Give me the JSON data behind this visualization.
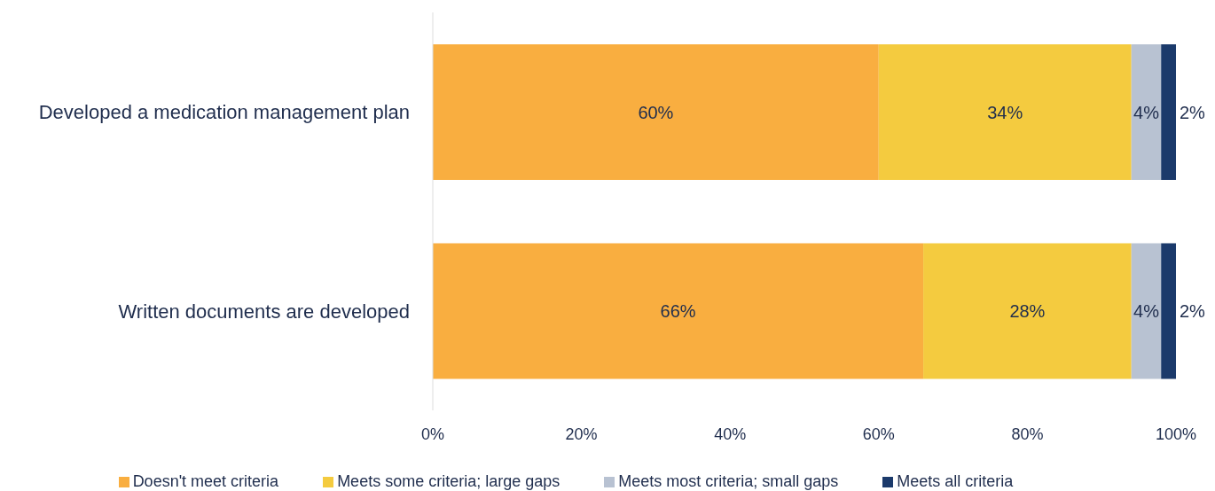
{
  "chart_data": {
    "type": "bar",
    "orientation": "horizontal",
    "stacked": true,
    "categories": [
      "Developed a medication management plan",
      "Written documents are developed"
    ],
    "series": [
      {
        "name": "Doesn't meet criteria",
        "color": "#f9ae40",
        "values": [
          60,
          66
        ],
        "value_labels": [
          "60%",
          "66%"
        ]
      },
      {
        "name": "Meets some criteria; large gaps",
        "color": "#f4cb3f",
        "values": [
          34,
          28
        ],
        "value_labels": [
          "34%",
          "28%"
        ]
      },
      {
        "name": "Meets most criteria; small gaps",
        "color": "#b8c2d2",
        "values": [
          4,
          4
        ],
        "value_labels": [
          "4%",
          "4%"
        ]
      },
      {
        "name": "Meets all criteria",
        "color": "#1b3a6b",
        "values": [
          2,
          2
        ],
        "value_labels": [
          "2%",
          "2%"
        ]
      }
    ],
    "xlim": [
      0,
      100
    ],
    "xticks": [
      {
        "value": 0,
        "label": "0%"
      },
      {
        "value": 20,
        "label": "20%"
      },
      {
        "value": 40,
        "label": "40%"
      },
      {
        "value": 60,
        "label": "60%"
      },
      {
        "value": 80,
        "label": "80%"
      },
      {
        "value": 100,
        "label": "100%"
      }
    ],
    "grid": false,
    "legend": "bottom"
  }
}
